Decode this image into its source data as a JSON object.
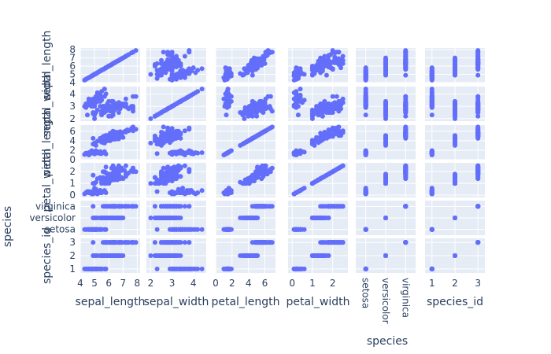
{
  "chart_data": {
    "type": "scatter",
    "kind": "scatter-matrix",
    "marker_color": "#636efa",
    "panel_background": "#e5ecf6",
    "grid_color": "#ffffff",
    "text_color": "#2a3f5f",
    "dimensions": [
      "sepal_length",
      "sepal_width",
      "petal_length",
      "petal_width",
      "species",
      "species_id"
    ],
    "axes": {
      "sepal_length": {
        "range": [
          4,
          8.2
        ],
        "ticks": [
          4,
          5,
          6,
          7,
          8
        ]
      },
      "sepal_width": {
        "range": [
          1.8,
          4.6
        ],
        "ticks": [
          2,
          3,
          4
        ]
      },
      "petal_length": {
        "range": [
          0,
          7.3
        ],
        "ticks": [
          0,
          2,
          4,
          6
        ]
      },
      "petal_width": {
        "range": [
          -0.2,
          2.75
        ],
        "ticks": [
          0,
          1,
          2
        ]
      },
      "species": {
        "categorical": true,
        "range": [
          -0.5,
          2.5
        ],
        "categories": [
          "setosa",
          "versicolor",
          "virginica"
        ]
      },
      "species_id": {
        "range": [
          0.7,
          3.3
        ],
        "ticks": [
          1,
          2,
          3
        ]
      }
    },
    "row_tick_overrides": {
      "sepal_length": [
        4,
        5,
        6,
        7,
        8
      ]
    },
    "species_label": "species",
    "records": [
      [
        5.1,
        3.5,
        1.4,
        0.2,
        0
      ],
      [
        4.9,
        3.0,
        1.4,
        0.2,
        0
      ],
      [
        4.7,
        3.2,
        1.3,
        0.2,
        0
      ],
      [
        4.6,
        3.1,
        1.5,
        0.2,
        0
      ],
      [
        5.0,
        3.6,
        1.4,
        0.2,
        0
      ],
      [
        5.4,
        3.9,
        1.7,
        0.4,
        0
      ],
      [
        4.6,
        3.4,
        1.4,
        0.3,
        0
      ],
      [
        5.0,
        3.4,
        1.5,
        0.2,
        0
      ],
      [
        4.4,
        2.9,
        1.4,
        0.2,
        0
      ],
      [
        4.9,
        3.1,
        1.5,
        0.1,
        0
      ],
      [
        5.4,
        3.7,
        1.5,
        0.2,
        0
      ],
      [
        4.8,
        3.4,
        1.6,
        0.2,
        0
      ],
      [
        4.8,
        3.0,
        1.4,
        0.1,
        0
      ],
      [
        4.3,
        3.0,
        1.1,
        0.1,
        0
      ],
      [
        5.8,
        4.0,
        1.2,
        0.2,
        0
      ],
      [
        5.7,
        4.4,
        1.5,
        0.4,
        0
      ],
      [
        5.4,
        3.9,
        1.3,
        0.4,
        0
      ],
      [
        5.1,
        3.5,
        1.4,
        0.3,
        0
      ],
      [
        5.7,
        3.8,
        1.7,
        0.3,
        0
      ],
      [
        5.1,
        3.8,
        1.5,
        0.3,
        0
      ],
      [
        5.4,
        3.4,
        1.7,
        0.2,
        0
      ],
      [
        5.1,
        3.7,
        1.5,
        0.4,
        0
      ],
      [
        4.6,
        3.6,
        1.0,
        0.2,
        0
      ],
      [
        5.1,
        3.3,
        1.7,
        0.5,
        0
      ],
      [
        4.8,
        3.4,
        1.9,
        0.2,
        0
      ],
      [
        5.0,
        3.0,
        1.6,
        0.2,
        0
      ],
      [
        5.0,
        3.4,
        1.6,
        0.4,
        0
      ],
      [
        5.2,
        3.5,
        1.5,
        0.2,
        0
      ],
      [
        5.2,
        3.4,
        1.4,
        0.2,
        0
      ],
      [
        4.7,
        3.2,
        1.6,
        0.2,
        0
      ],
      [
        4.8,
        3.1,
        1.6,
        0.2,
        0
      ],
      [
        5.4,
        3.4,
        1.5,
        0.4,
        0
      ],
      [
        5.2,
        4.1,
        1.5,
        0.1,
        0
      ],
      [
        5.5,
        4.2,
        1.4,
        0.2,
        0
      ],
      [
        4.9,
        3.1,
        1.5,
        0.2,
        0
      ],
      [
        5.0,
        3.2,
        1.2,
        0.2,
        0
      ],
      [
        5.5,
        3.5,
        1.3,
        0.2,
        0
      ],
      [
        4.9,
        3.6,
        1.4,
        0.1,
        0
      ],
      [
        4.4,
        3.0,
        1.3,
        0.2,
        0
      ],
      [
        5.1,
        3.4,
        1.5,
        0.2,
        0
      ],
      [
        5.0,
        3.5,
        1.3,
        0.3,
        0
      ],
      [
        4.5,
        2.3,
        1.3,
        0.3,
        0
      ],
      [
        4.4,
        3.2,
        1.3,
        0.2,
        0
      ],
      [
        5.0,
        3.5,
        1.6,
        0.6,
        0
      ],
      [
        5.1,
        3.8,
        1.9,
        0.4,
        0
      ],
      [
        4.8,
        3.0,
        1.4,
        0.3,
        0
      ],
      [
        5.1,
        3.8,
        1.6,
        0.2,
        0
      ],
      [
        4.6,
        3.2,
        1.4,
        0.2,
        0
      ],
      [
        5.3,
        3.7,
        1.5,
        0.2,
        0
      ],
      [
        5.0,
        3.3,
        1.4,
        0.2,
        0
      ],
      [
        7.0,
        3.2,
        4.7,
        1.4,
        1
      ],
      [
        6.4,
        3.2,
        4.5,
        1.5,
        1
      ],
      [
        6.9,
        3.1,
        4.9,
        1.5,
        1
      ],
      [
        5.5,
        2.3,
        4.0,
        1.3,
        1
      ],
      [
        6.5,
        2.8,
        4.6,
        1.5,
        1
      ],
      [
        5.7,
        2.8,
        4.5,
        1.3,
        1
      ],
      [
        6.3,
        3.3,
        4.7,
        1.6,
        1
      ],
      [
        4.9,
        2.4,
        3.3,
        1.0,
        1
      ],
      [
        6.6,
        2.9,
        4.6,
        1.3,
        1
      ],
      [
        5.2,
        2.7,
        3.9,
        1.4,
        1
      ],
      [
        5.0,
        2.0,
        3.5,
        1.0,
        1
      ],
      [
        5.9,
        3.0,
        4.2,
        1.5,
        1
      ],
      [
        6.0,
        2.2,
        4.0,
        1.0,
        1
      ],
      [
        6.1,
        2.9,
        4.7,
        1.4,
        1
      ],
      [
        5.6,
        2.9,
        3.6,
        1.3,
        1
      ],
      [
        6.7,
        3.1,
        4.4,
        1.4,
        1
      ],
      [
        5.6,
        3.0,
        4.5,
        1.5,
        1
      ],
      [
        5.8,
        2.7,
        4.1,
        1.0,
        1
      ],
      [
        6.2,
        2.2,
        4.5,
        1.5,
        1
      ],
      [
        5.6,
        2.5,
        3.9,
        1.1,
        1
      ],
      [
        5.9,
        3.2,
        4.8,
        1.8,
        1
      ],
      [
        6.1,
        2.8,
        4.0,
        1.3,
        1
      ],
      [
        6.3,
        2.5,
        4.9,
        1.5,
        1
      ],
      [
        6.1,
        2.8,
        4.7,
        1.2,
        1
      ],
      [
        6.4,
        2.9,
        4.3,
        1.3,
        1
      ],
      [
        6.6,
        3.0,
        4.4,
        1.4,
        1
      ],
      [
        6.8,
        2.8,
        4.8,
        1.4,
        1
      ],
      [
        6.7,
        3.0,
        5.0,
        1.7,
        1
      ],
      [
        6.0,
        2.9,
        4.5,
        1.5,
        1
      ],
      [
        5.7,
        2.6,
        3.5,
        1.0,
        1
      ],
      [
        5.5,
        2.4,
        3.8,
        1.1,
        1
      ],
      [
        5.5,
        2.4,
        3.7,
        1.0,
        1
      ],
      [
        5.8,
        2.7,
        3.9,
        1.2,
        1
      ],
      [
        6.0,
        2.7,
        5.1,
        1.6,
        1
      ],
      [
        5.4,
        3.0,
        4.5,
        1.5,
        1
      ],
      [
        6.0,
        3.4,
        4.5,
        1.6,
        1
      ],
      [
        6.7,
        3.1,
        4.7,
        1.5,
        1
      ],
      [
        6.3,
        2.3,
        4.4,
        1.3,
        1
      ],
      [
        5.6,
        3.0,
        4.1,
        1.3,
        1
      ],
      [
        5.5,
        2.5,
        4.0,
        1.3,
        1
      ],
      [
        5.5,
        2.6,
        4.4,
        1.2,
        1
      ],
      [
        6.1,
        3.0,
        4.6,
        1.4,
        1
      ],
      [
        5.8,
        2.6,
        4.0,
        1.2,
        1
      ],
      [
        5.0,
        2.3,
        3.3,
        1.0,
        1
      ],
      [
        5.6,
        2.7,
        4.2,
        1.3,
        1
      ],
      [
        5.7,
        3.0,
        4.2,
        1.2,
        1
      ],
      [
        5.7,
        2.9,
        4.2,
        1.3,
        1
      ],
      [
        6.2,
        2.9,
        4.3,
        1.3,
        1
      ],
      [
        5.1,
        2.5,
        3.0,
        1.1,
        1
      ],
      [
        5.7,
        2.8,
        4.1,
        1.3,
        1
      ],
      [
        6.3,
        3.3,
        6.0,
        2.5,
        2
      ],
      [
        5.8,
        2.7,
        5.1,
        1.9,
        2
      ],
      [
        7.1,
        3.0,
        5.9,
        2.1,
        2
      ],
      [
        6.3,
        2.9,
        5.6,
        1.8,
        2
      ],
      [
        6.5,
        3.0,
        5.8,
        2.2,
        2
      ],
      [
        7.6,
        3.0,
        6.6,
        2.1,
        2
      ],
      [
        4.9,
        2.5,
        4.5,
        1.7,
        2
      ],
      [
        7.3,
        2.9,
        6.3,
        1.8,
        2
      ],
      [
        6.7,
        2.5,
        5.8,
        1.8,
        2
      ],
      [
        7.2,
        3.6,
        6.1,
        2.5,
        2
      ],
      [
        6.5,
        3.2,
        5.1,
        2.0,
        2
      ],
      [
        6.4,
        2.7,
        5.3,
        1.9,
        2
      ],
      [
        6.8,
        3.0,
        5.5,
        2.1,
        2
      ],
      [
        5.7,
        2.5,
        5.0,
        2.0,
        2
      ],
      [
        5.8,
        2.8,
        5.1,
        2.4,
        2
      ],
      [
        6.4,
        3.2,
        5.3,
        2.3,
        2
      ],
      [
        6.5,
        3.0,
        5.5,
        1.8,
        2
      ],
      [
        7.7,
        3.8,
        6.7,
        2.2,
        2
      ],
      [
        7.7,
        2.6,
        6.9,
        2.3,
        2
      ],
      [
        6.0,
        2.2,
        5.0,
        1.5,
        2
      ],
      [
        6.9,
        3.2,
        5.7,
        2.3,
        2
      ],
      [
        5.6,
        2.8,
        4.9,
        2.0,
        2
      ],
      [
        7.7,
        2.8,
        6.7,
        2.0,
        2
      ],
      [
        6.3,
        2.7,
        4.9,
        1.8,
        2
      ],
      [
        6.7,
        3.3,
        5.7,
        2.1,
        2
      ],
      [
        7.2,
        3.2,
        6.0,
        1.8,
        2
      ],
      [
        6.2,
        2.8,
        4.8,
        1.8,
        2
      ],
      [
        6.1,
        3.0,
        4.9,
        1.8,
        2
      ],
      [
        6.4,
        2.8,
        5.6,
        2.1,
        2
      ],
      [
        7.2,
        3.0,
        5.8,
        1.6,
        2
      ],
      [
        7.4,
        2.8,
        6.1,
        1.9,
        2
      ],
      [
        7.9,
        3.8,
        6.4,
        2.0,
        2
      ],
      [
        6.4,
        2.8,
        5.6,
        2.2,
        2
      ],
      [
        6.3,
        2.8,
        5.1,
        1.5,
        2
      ],
      [
        6.1,
        2.6,
        5.6,
        1.4,
        2
      ],
      [
        7.7,
        3.0,
        6.1,
        2.3,
        2
      ],
      [
        6.3,
        3.4,
        5.6,
        2.4,
        2
      ],
      [
        6.4,
        3.1,
        5.5,
        1.8,
        2
      ],
      [
        6.0,
        3.0,
        4.8,
        1.8,
        2
      ],
      [
        6.9,
        3.1,
        5.4,
        2.1,
        2
      ],
      [
        6.7,
        3.1,
        5.6,
        2.4,
        2
      ],
      [
        6.9,
        3.1,
        5.1,
        2.3,
        2
      ],
      [
        5.8,
        2.7,
        5.1,
        1.9,
        2
      ],
      [
        6.8,
        3.2,
        5.9,
        2.3,
        2
      ],
      [
        6.7,
        3.3,
        5.7,
        2.5,
        2
      ],
      [
        6.7,
        3.0,
        5.2,
        2.3,
        2
      ],
      [
        6.3,
        2.5,
        5.0,
        1.9,
        2
      ],
      [
        6.5,
        3.0,
        5.2,
        2.0,
        2
      ],
      [
        6.2,
        3.4,
        5.4,
        2.3,
        2
      ],
      [
        5.9,
        3.0,
        5.1,
        1.8,
        2
      ]
    ]
  }
}
